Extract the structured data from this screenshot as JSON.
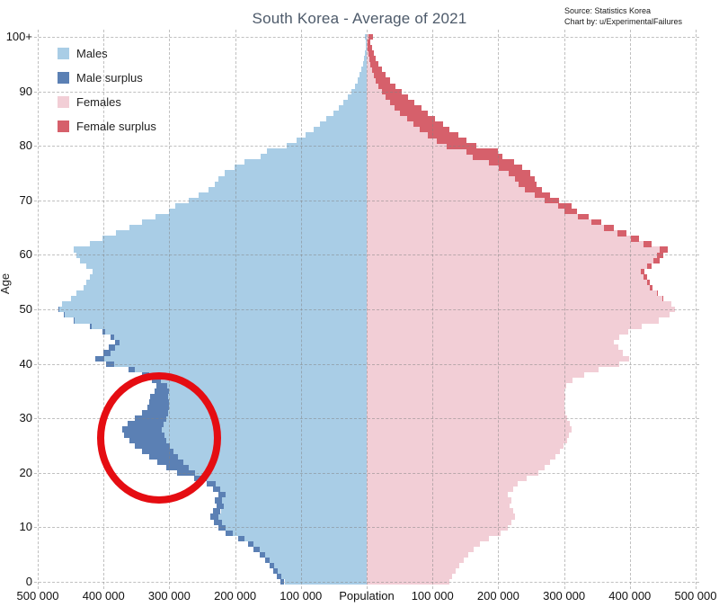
{
  "attribution": {
    "line1": "Source: Statistics Korea",
    "line2": "Chart by:  u/ExperimentalFailures"
  },
  "chart_data": {
    "type": "bar",
    "subtype": "population-pyramid",
    "title": "South Korea - Average of 2021",
    "ylabel": "Age",
    "xlabel": "Population",
    "unit": "thousands of people per single year of age",
    "x_axis_max": 500,
    "x_ticks": [
      "500 000",
      "400 000",
      "300 000",
      "200 000",
      "100 000",
      "Population",
      "100 000",
      "200 000",
      "300 000",
      "400 000",
      "500 000"
    ],
    "y_ticks": [
      "0",
      "10",
      "20",
      "30",
      "40",
      "50",
      "60",
      "70",
      "80",
      "90",
      "100+"
    ],
    "grid": "dashed",
    "legend_position": "top-left-inside",
    "legend": [
      {
        "label": "Males",
        "color": "#a9cde6"
      },
      {
        "label": "Male surplus",
        "color": "#5b80b4"
      },
      {
        "label": "Females",
        "color": "#f2ced6"
      },
      {
        "label": "Female surplus",
        "color": "#d6606b"
      }
    ],
    "series": [
      {
        "name": "Males",
        "side": "left",
        "values": [
          131,
          136,
          142,
          148,
          155,
          163,
          172,
          181,
          196,
          214,
          225,
          232,
          238,
          234,
          228,
          231,
          226,
          234,
          243,
          262,
          288,
          304,
          318,
          330,
          341,
          352,
          361,
          369,
          371,
          363,
          352,
          342,
          334,
          331,
          329,
          322,
          319,
          326,
          341,
          362,
          396,
          412,
          400,
          392,
          382,
          389,
          401,
          421,
          446,
          461,
          469,
          463,
          450,
          441,
          431,
          426,
          421,
          416,
          426,
          436,
          441,
          446,
          421,
          401,
          381,
          361,
          341,
          321,
          301,
          291,
          271,
          256,
          241,
          231,
          226,
          216,
          201,
          186,
          161,
          151,
          121,
          106,
          93,
          81,
          71,
          61,
          51,
          43,
          36,
          29,
          23,
          18,
          14,
          11,
          8,
          6,
          4,
          3,
          2,
          2,
          3
        ]
      },
      {
        "name": "Females",
        "side": "right",
        "values": [
          125,
          130,
          135,
          141,
          147,
          155,
          163,
          172,
          186,
          203,
          214,
          220,
          226,
          222,
          217,
          220,
          215,
          223,
          230,
          243,
          261,
          270,
          279,
          287,
          294,
          299,
          304,
          308,
          311,
          309,
          305,
          302,
          300,
          300,
          302,
          301,
          303,
          313,
          330,
          352,
          384,
          399,
          390,
          383,
          376,
          384,
          397,
          418,
          444,
          460,
          468,
          463,
          451,
          443,
          434,
          430,
          426,
          422,
          433,
          445,
          451,
          457,
          433,
          414,
          395,
          376,
          357,
          338,
          319,
          311,
          293,
          279,
          266,
          258,
          256,
          249,
          236,
          224,
          206,
          199,
          166,
          151,
          139,
          126,
          116,
          104,
          93,
          83,
          73,
          63,
          53,
          44,
          36,
          29,
          23,
          18,
          14,
          11,
          8,
          6,
          9
        ]
      }
    ],
    "annotation": {
      "shape": "ellipse",
      "color": "#e50d12",
      "note": "hand-drawn red circle highlighting the male surplus bulge around ages 20-35"
    }
  },
  "colors": {
    "males": "#a9cde6",
    "male_surplus": "#5b80b4",
    "females": "#f2ced6",
    "female_surplus": "#d6606b",
    "title": "#4d5a6a",
    "grid": "rgba(130,130,130,0.5)"
  }
}
